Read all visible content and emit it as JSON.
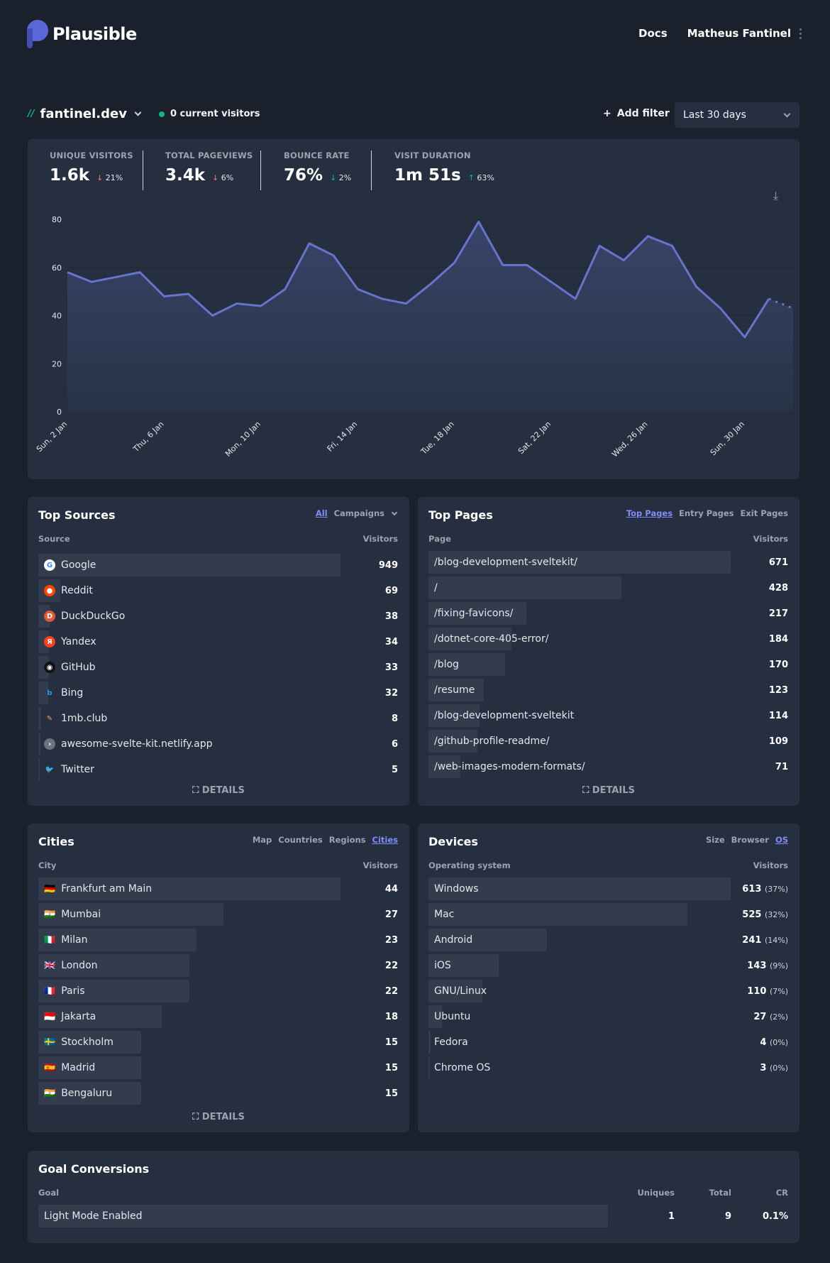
{
  "header": {
    "brand": "Plausible",
    "docs": "Docs",
    "user": "Matheus Fantinel",
    "menu_icon": "vertical-dots-icon"
  },
  "site": {
    "name": "fantinel.dev",
    "current_visitors": "0 current visitors",
    "add_filter": "Add filter",
    "period": "Last 30 days"
  },
  "stats": [
    {
      "label": "UNIQUE VISITORS",
      "value": "1.6k",
      "change": "21%",
      "direction": "down"
    },
    {
      "label": "TOTAL PAGEVIEWS",
      "value": "3.4k",
      "change": "6%",
      "direction": "down"
    },
    {
      "label": "BOUNCE RATE",
      "value": "76%",
      "change": "2%",
      "direction": "down"
    },
    {
      "label": "VISIT DURATION",
      "value": "1m 51s",
      "change": "63%",
      "direction": "up"
    }
  ],
  "colors": {
    "accent": "#818cf8",
    "line": "#6574cd",
    "down": "#f87171",
    "up": "#10b981",
    "good_down": "#10b981"
  },
  "chart_data": {
    "type": "area",
    "ylim": [
      0,
      80
    ],
    "yticks": [
      "0",
      "20",
      "40",
      "60",
      "80"
    ],
    "x": [
      "2 Jan",
      "3 Jan",
      "4 Jan",
      "5 Jan",
      "6 Jan",
      "7 Jan",
      "8 Jan",
      "9 Jan",
      "10 Jan",
      "11 Jan",
      "12 Jan",
      "13 Jan",
      "14 Jan",
      "15 Jan",
      "16 Jan",
      "17 Jan",
      "18 Jan",
      "19 Jan",
      "20 Jan",
      "21 Jan",
      "22 Jan",
      "23 Jan",
      "24 Jan",
      "25 Jan",
      "26 Jan",
      "27 Jan",
      "28 Jan",
      "29 Jan",
      "30 Jan",
      "31 Jan",
      "1 Feb"
    ],
    "values": [
      58,
      54,
      56,
      58,
      48,
      49,
      40,
      45,
      44,
      51,
      70,
      65,
      51,
      47,
      45,
      53,
      62,
      79,
      61,
      61,
      54,
      47,
      69,
      63,
      73,
      69,
      52,
      43,
      31,
      47,
      43
    ],
    "xtick_labels": [
      {
        "i": 0,
        "t": "Sun, 2 Jan"
      },
      {
        "i": 4,
        "t": "Thu, 6 Jan"
      },
      {
        "i": 8,
        "t": "Mon, 10 Jan"
      },
      {
        "i": 12,
        "t": "Fri, 14 Jan"
      },
      {
        "i": 16,
        "t": "Tue, 18 Jan"
      },
      {
        "i": 20,
        "t": "Sat, 22 Jan"
      },
      {
        "i": 24,
        "t": "Wed, 26 Jan"
      },
      {
        "i": 28,
        "t": "Sun, 30 Jan"
      }
    ],
    "grid": true,
    "dashed_last_segment": true
  },
  "sources": {
    "title": "Top Sources",
    "tabs": [
      "All",
      "Campaigns"
    ],
    "active": 0,
    "col1": "Source",
    "col2": "Visitors",
    "details": "DETAILS",
    "rows": [
      {
        "label": "Google",
        "value": "949",
        "n": 949,
        "icon": "google-icon",
        "color": "#fff",
        "glyph": "G",
        "fg": "#4285f4"
      },
      {
        "label": "Reddit",
        "value": "69",
        "n": 69,
        "icon": "reddit-icon",
        "color": "#ff4500",
        "glyph": "●",
        "fg": "#fff"
      },
      {
        "label": "DuckDuckGo",
        "value": "38",
        "n": 38,
        "icon": "duckduckgo-icon",
        "color": "#de5833",
        "glyph": "D",
        "fg": "#fff"
      },
      {
        "label": "Yandex",
        "value": "34",
        "n": 34,
        "icon": "yandex-icon",
        "color": "#fc3f1d",
        "glyph": "Я",
        "fg": "#fff"
      },
      {
        "label": "GitHub",
        "value": "33",
        "n": 33,
        "icon": "github-icon",
        "color": "#111",
        "glyph": "◉",
        "fg": "#fff"
      },
      {
        "label": "Bing",
        "value": "32",
        "n": 32,
        "icon": "bing-icon",
        "color": "transparent",
        "glyph": "b",
        "fg": "#2196f3"
      },
      {
        "label": "1mb.club",
        "value": "8",
        "n": 8,
        "icon": "feather-icon",
        "color": "transparent",
        "glyph": "✎",
        "fg": "#f0a070"
      },
      {
        "label": "awesome-svelte-kit.netlify.app",
        "value": "6",
        "n": 6,
        "icon": "globe-icon",
        "color": "#6b7280",
        "glyph": "›",
        "fg": "#fff"
      },
      {
        "label": "Twitter",
        "value": "5",
        "n": 5,
        "icon": "twitter-icon",
        "color": "transparent",
        "glyph": "🐦",
        "fg": "#1da1f2"
      }
    ]
  },
  "pages": {
    "title": "Top Pages",
    "tabs": [
      "Top Pages",
      "Entry Pages",
      "Exit Pages"
    ],
    "active": 0,
    "col1": "Page",
    "col2": "Visitors",
    "details": "DETAILS",
    "rows": [
      {
        "label": "/blog-development-sveltekit/",
        "value": "671",
        "n": 671
      },
      {
        "label": "/",
        "value": "428",
        "n": 428
      },
      {
        "label": "/fixing-favicons/",
        "value": "217",
        "n": 217
      },
      {
        "label": "/dotnet-core-405-error/",
        "value": "184",
        "n": 184
      },
      {
        "label": "/blog",
        "value": "170",
        "n": 170
      },
      {
        "label": "/resume",
        "value": "123",
        "n": 123
      },
      {
        "label": "/blog-development-sveltekit",
        "value": "114",
        "n": 114
      },
      {
        "label": "/github-profile-readme/",
        "value": "109",
        "n": 109
      },
      {
        "label": "/web-images-modern-formats/",
        "value": "71",
        "n": 71
      }
    ]
  },
  "cities": {
    "title": "Cities",
    "tabs": [
      "Map",
      "Countries",
      "Regions",
      "Cities"
    ],
    "active": 3,
    "col1": "City",
    "col2": "Visitors",
    "details": "DETAILS",
    "rows": [
      {
        "label": "Frankfurt am Main",
        "value": "44",
        "n": 44,
        "flag": "🇩🇪"
      },
      {
        "label": "Mumbai",
        "value": "27",
        "n": 27,
        "flag": "🇮🇳"
      },
      {
        "label": "Milan",
        "value": "23",
        "n": 23,
        "flag": "🇮🇹"
      },
      {
        "label": "London",
        "value": "22",
        "n": 22,
        "flag": "🇬🇧"
      },
      {
        "label": "Paris",
        "value": "22",
        "n": 22,
        "flag": "🇫🇷"
      },
      {
        "label": "Jakarta",
        "value": "18",
        "n": 18,
        "flag": "🇮🇩"
      },
      {
        "label": "Stockholm",
        "value": "15",
        "n": 15,
        "flag": "🇸🇪"
      },
      {
        "label": "Madrid",
        "value": "15",
        "n": 15,
        "flag": "🇪🇸"
      },
      {
        "label": "Bengaluru",
        "value": "15",
        "n": 15,
        "flag": "🇮🇳"
      }
    ]
  },
  "devices": {
    "title": "Devices",
    "tabs": [
      "Size",
      "Browser",
      "OS"
    ],
    "active": 2,
    "col1": "Operating system",
    "col2": "Visitors",
    "rows": [
      {
        "label": "Windows",
        "value": "613",
        "pct": "(37%)",
        "n": 613
      },
      {
        "label": "Mac",
        "value": "525",
        "pct": "(32%)",
        "n": 525
      },
      {
        "label": "Android",
        "value": "241",
        "pct": "(14%)",
        "n": 241
      },
      {
        "label": "iOS",
        "value": "143",
        "pct": "(9%)",
        "n": 143
      },
      {
        "label": "GNU/Linux",
        "value": "110",
        "pct": "(7%)",
        "n": 110
      },
      {
        "label": "Ubuntu",
        "value": "27",
        "pct": "(2%)",
        "n": 27
      },
      {
        "label": "Fedora",
        "value": "4",
        "pct": "(0%)",
        "n": 4
      },
      {
        "label": "Chrome OS",
        "value": "3",
        "pct": "(0%)",
        "n": 3
      }
    ]
  },
  "goals": {
    "title": "Goal Conversions",
    "cols": [
      "Goal",
      "Uniques",
      "Total",
      "CR"
    ],
    "rows": [
      {
        "label": "Light Mode Enabled",
        "uniques": "1",
        "total": "9",
        "cr": "0.1%"
      }
    ]
  }
}
